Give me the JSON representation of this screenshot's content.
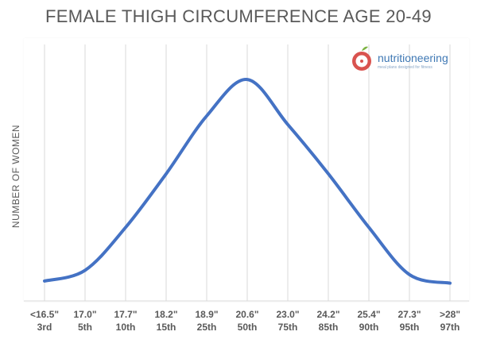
{
  "chart_data": {
    "type": "line",
    "title": "FEMALE THIGH CIRCUMFERENCE AGE 20-49",
    "xlabel": "",
    "ylabel": "NUMBER OF WOMEN",
    "categories": [
      "<16.5\"",
      "17.0\"",
      "17.7\"",
      "18.2\"",
      "18.9\"",
      "20.6\"",
      "23.0\"",
      "24.2\"",
      "25.4\"",
      "27.3\"",
      ">28\""
    ],
    "percentiles": [
      "3rd",
      "5th",
      "10th",
      "15th",
      "25th",
      "50th",
      "75th",
      "85th",
      "90th",
      "95th",
      "97th"
    ],
    "series": [
      {
        "values": [
          0.03,
          0.08,
          0.28,
          0.53,
          0.8,
          0.97,
          0.76,
          0.53,
          0.28,
          0.06,
          0.02
        ]
      }
    ],
    "ylim": [
      0,
      1
    ],
    "grid": "vertical",
    "line_color": "#4472c4",
    "grid_color": "#d9d9d9"
  },
  "brand": {
    "name": "nutritioneering",
    "tagline": "meal plans designed for fitness"
  }
}
